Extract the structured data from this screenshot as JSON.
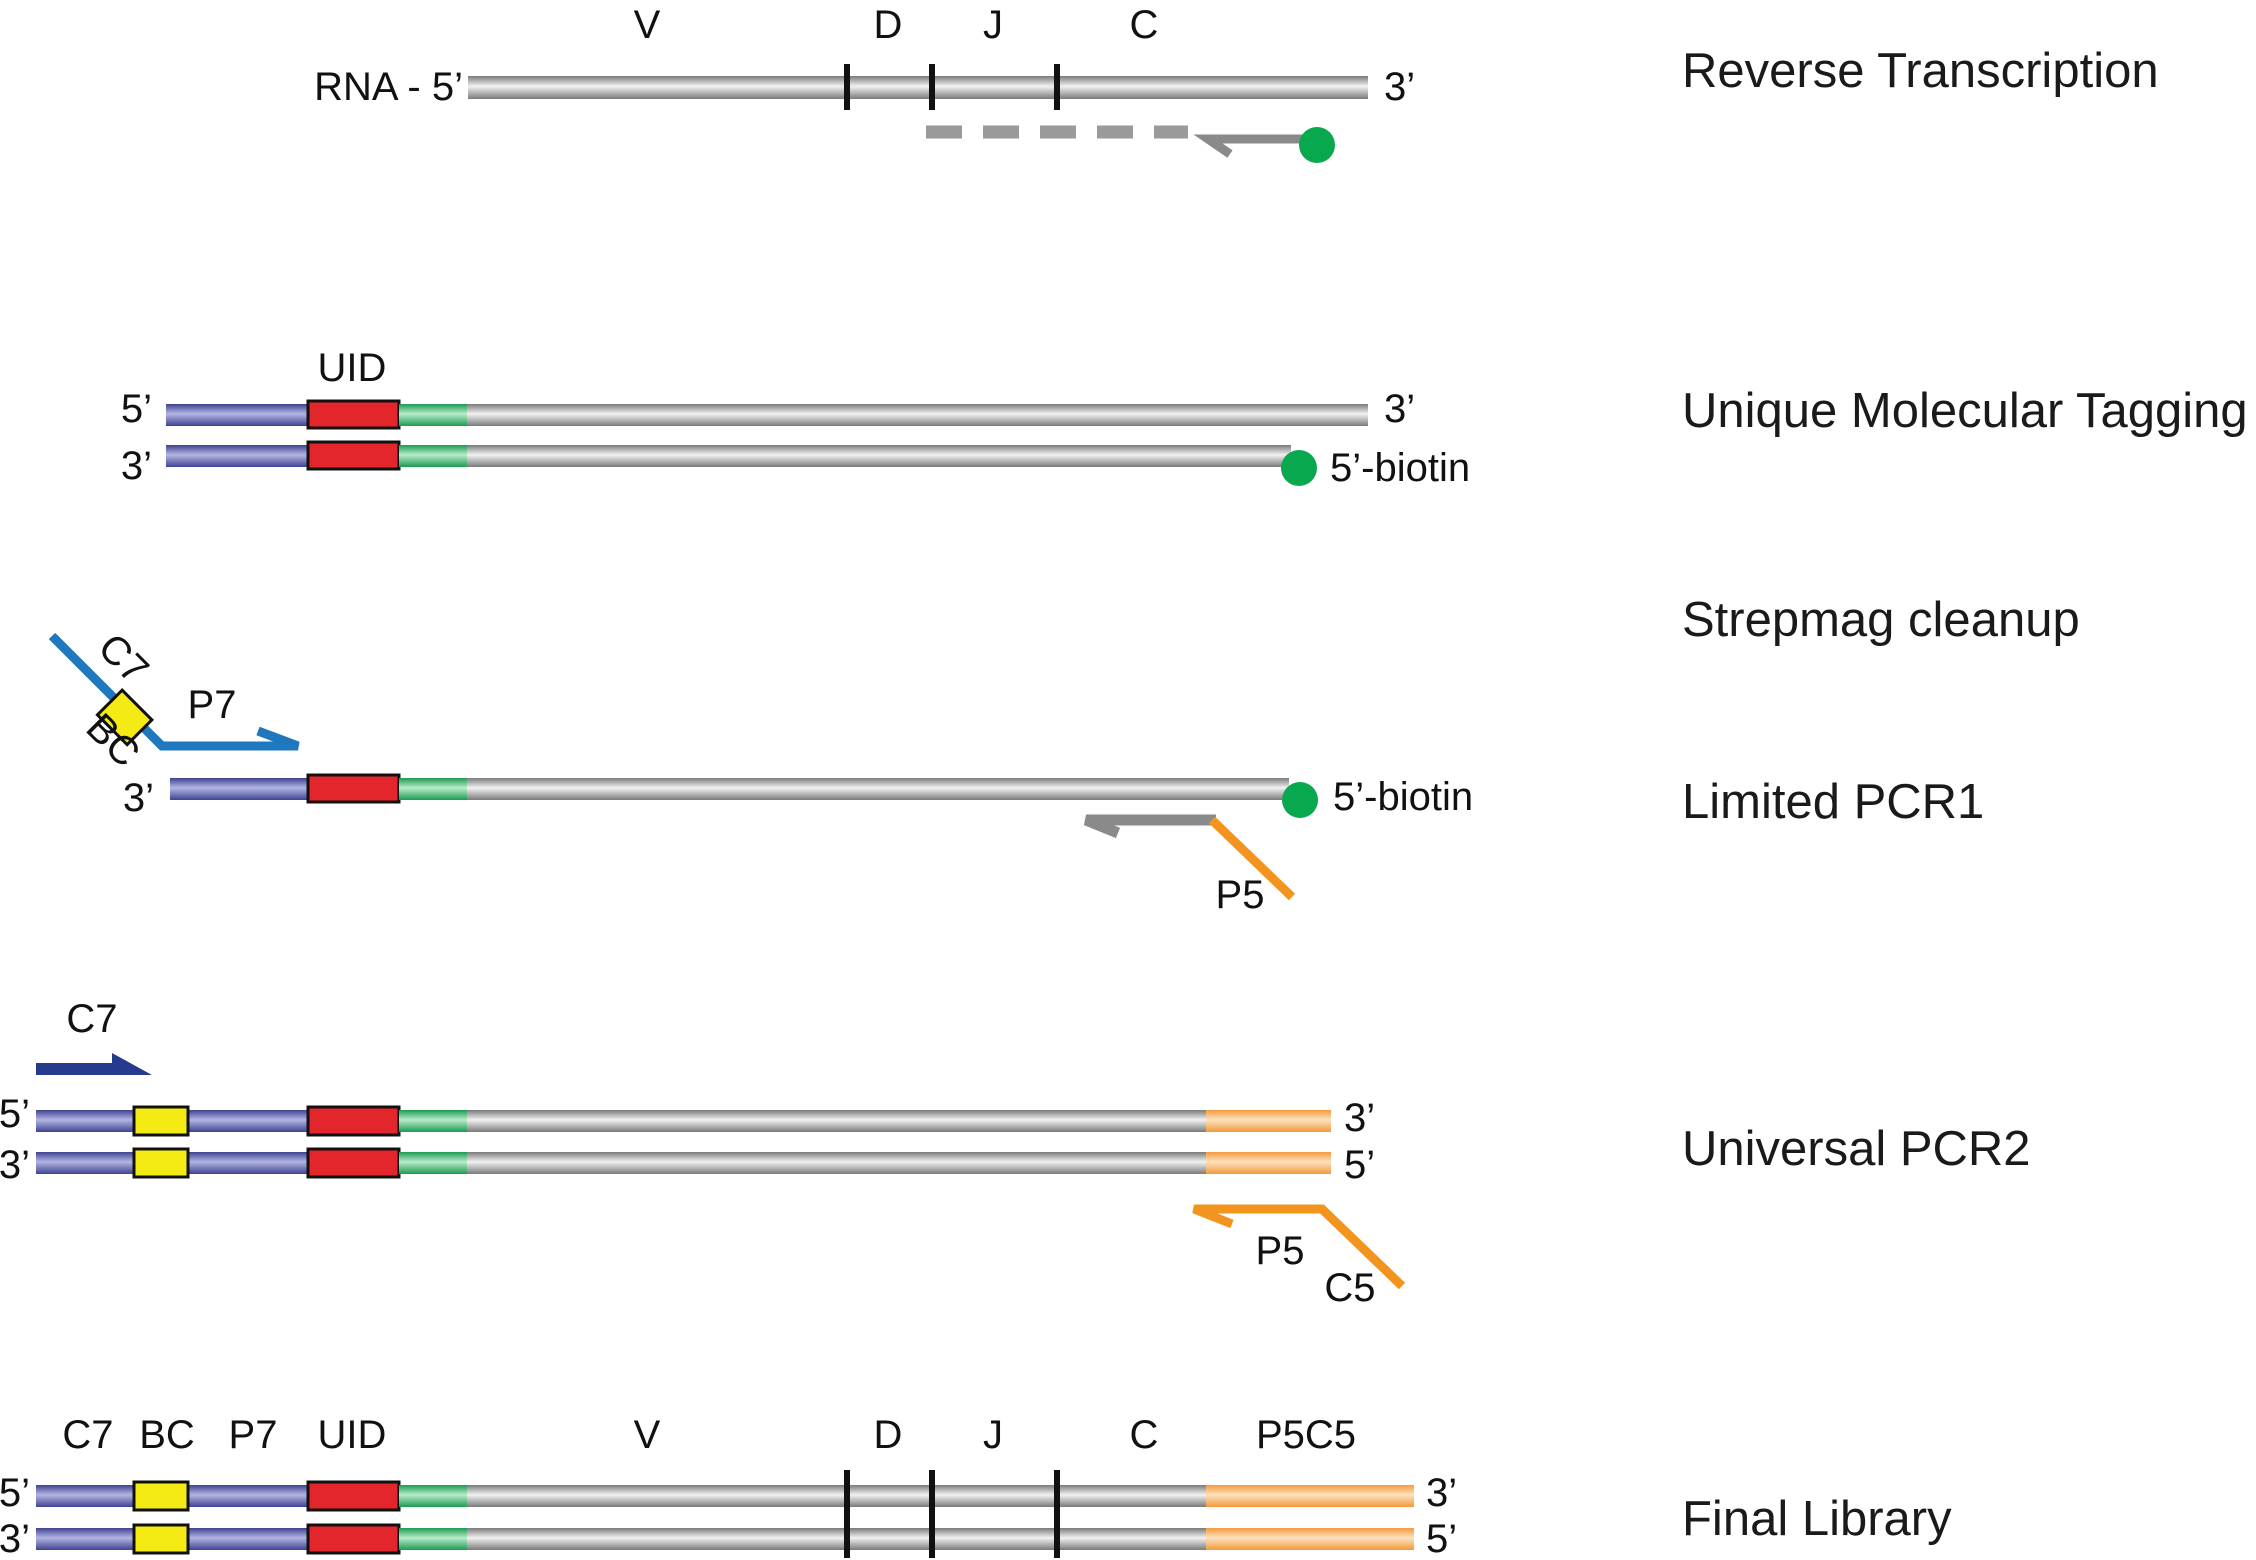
{
  "steps": {
    "reverse_transcription": "Reverse Transcription",
    "unique_molecular_tagging": "Unique Molecular Tagging",
    "strepmag_cleanup": "Strepmag cleanup",
    "limited_pcr1": "Limited PCR1",
    "universal_pcr2": "Universal PCR2",
    "final_library": "Final Library"
  },
  "rt": {
    "rna_5": "RNA - 5’",
    "end_3": "3’",
    "seg_v": "V",
    "seg_d": "D",
    "seg_j": "J",
    "seg_c": "C"
  },
  "umt": {
    "uid": "UID",
    "top_5": "5’",
    "top_3": "3’",
    "bottom_3": "3’",
    "biotin": "5’-biotin"
  },
  "pcr1": {
    "c7": "C7",
    "p7": "P7",
    "bc": "BC",
    "end_3": "3’",
    "biotin": "5’-biotin",
    "p5": "P5"
  },
  "pcr2": {
    "c7": "C7",
    "top_5": "5’",
    "top_3": "3’",
    "bottom_3": "3’",
    "bottom_5": "5’",
    "p5": "P5",
    "c5": "C5"
  },
  "final": {
    "c7": "C7",
    "bc": "BC",
    "p7": "P7",
    "uid": "UID",
    "v": "V",
    "d": "D",
    "j": "J",
    "c": "C",
    "p5c5": "P5C5",
    "top_5": "5’",
    "top_3": "3’",
    "bottom_3": "3’",
    "bottom_5": "5’"
  },
  "colors": {
    "adapter_blue": "#6b6fb5",
    "uid_red": "#e3262b",
    "linker_green": "#4dbd7a",
    "strand_grey": "#a8a8a8",
    "bc_yellow": "#f5eb14",
    "p5_orange": "#f7b36a",
    "primer_orange": "#f3941f",
    "primer_blue": "#1f78bd",
    "primer_navy": "#263a8e",
    "biotin_green": "#08a84e"
  }
}
